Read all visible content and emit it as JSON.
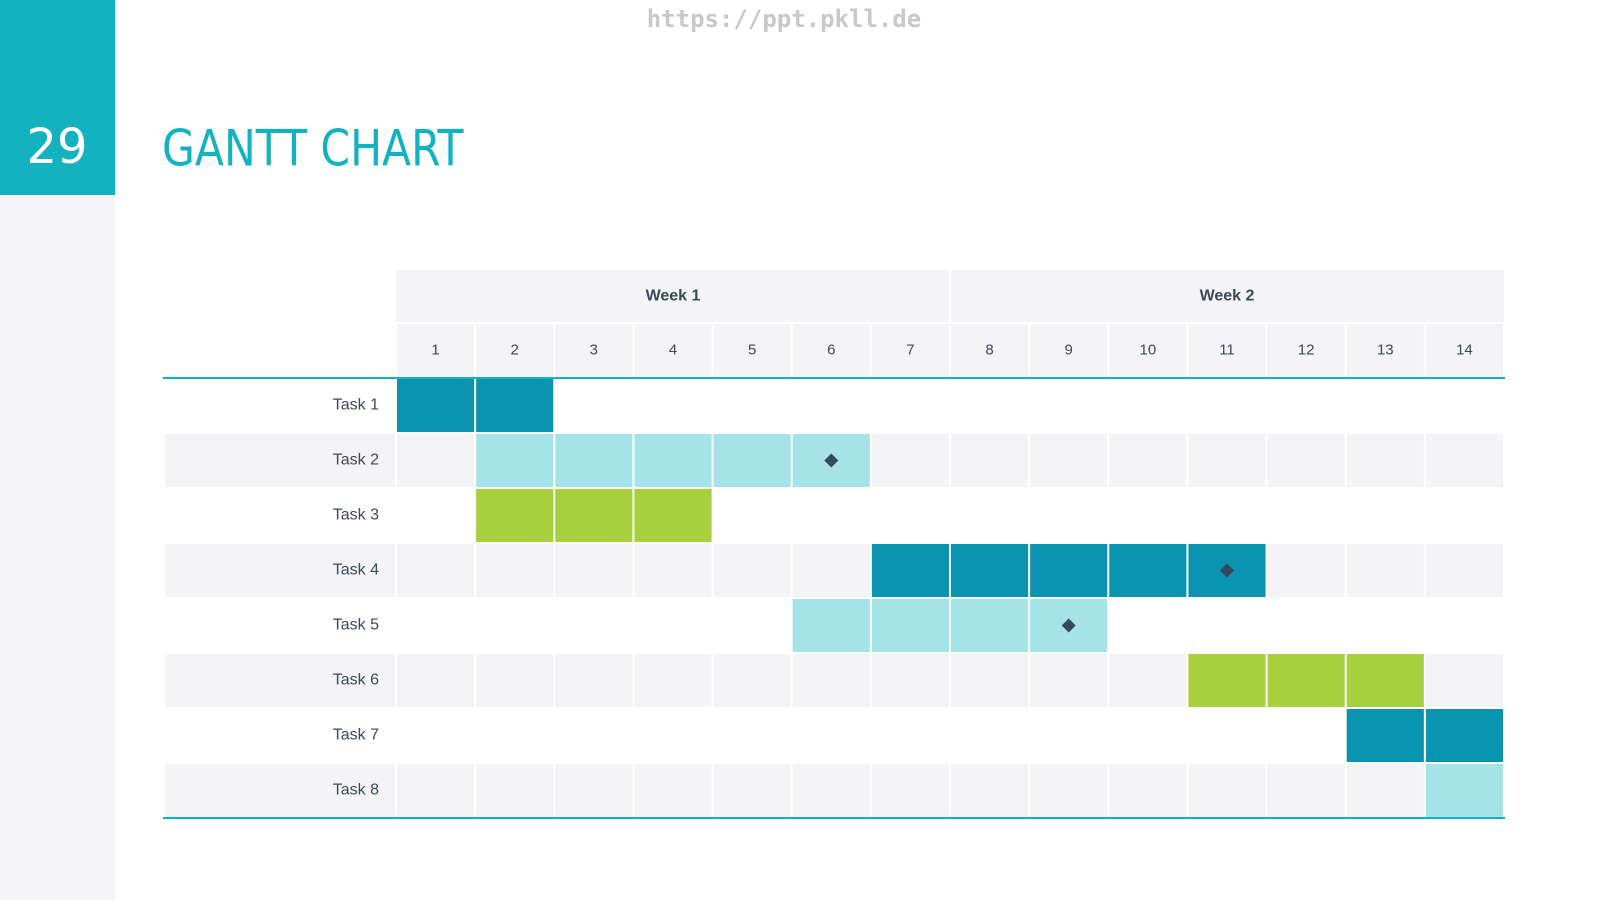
{
  "slide_number": "29",
  "watermark": "https://ppt.pkll.de",
  "chart_data": {
    "type": "gantt",
    "title": "GANTT CHART",
    "weeks": [
      "Week 1",
      "Week 2"
    ],
    "categories": [
      "1",
      "2",
      "3",
      "4",
      "5",
      "6",
      "7",
      "8",
      "9",
      "10",
      "11",
      "12",
      "13",
      "14"
    ],
    "tasks": [
      {
        "name": "Task 1",
        "start": 1,
        "end": 2,
        "color": "#0b94b0"
      },
      {
        "name": "Task 2",
        "start": 2,
        "end": 6,
        "color": "#a6e3e8",
        "milestone": 6
      },
      {
        "name": "Task 3",
        "start": 2,
        "end": 4,
        "color": "#a8cf3c"
      },
      {
        "name": "Task 4",
        "start": 7,
        "end": 11,
        "color": "#0b94b0",
        "milestone": 11
      },
      {
        "name": "Task 5",
        "start": 6,
        "end": 9,
        "color": "#a6e3e8",
        "milestone": 9
      },
      {
        "name": "Task 6",
        "start": 11,
        "end": 13,
        "color": "#a8cf3c"
      },
      {
        "name": "Task 7",
        "start": 13,
        "end": 14,
        "color": "#0b94b0"
      },
      {
        "name": "Task 8",
        "start": 14,
        "end": 14,
        "color": "#a6e3e8"
      }
    ]
  }
}
